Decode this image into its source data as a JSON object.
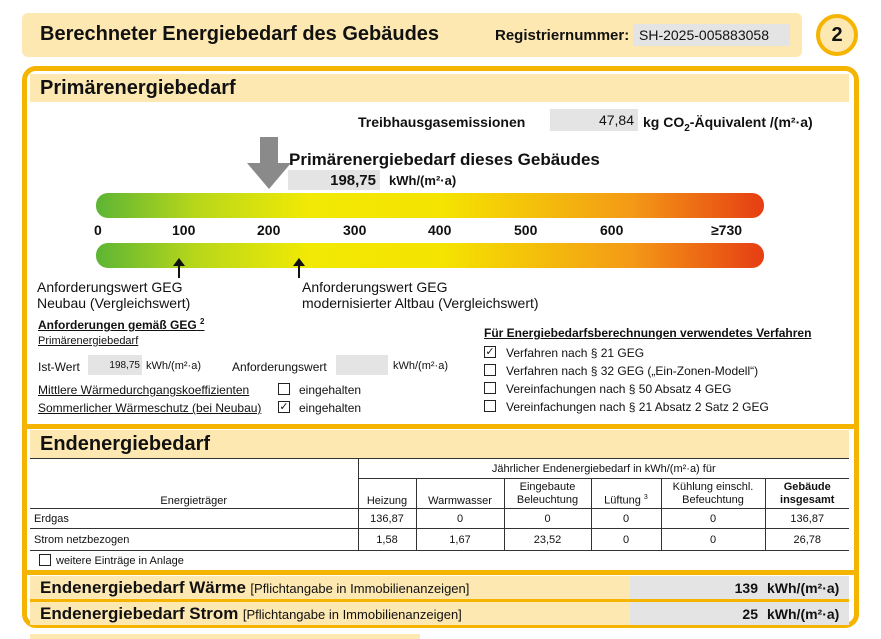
{
  "header": {
    "title": "Berechneter Energiebedarf des Gebäudes",
    "reg_label": "Registriernummer:",
    "reg_value": "SH-2025-005883058",
    "page_number": "2"
  },
  "primary": {
    "section_title": "Primärenergiebedarf",
    "ghg_label": "Treibhausgasemissionen",
    "ghg_value": "47,84",
    "ghg_unit_pre": "kg CO",
    "ghg_unit_sub": "2",
    "ghg_unit_post": "-Äquivalent /(m²·a)",
    "building_label": "Primärenergiebedarf dieses Gebäudes",
    "building_value": "198,75",
    "building_unit": "kWh/(m²·a)",
    "scale_ticks": [
      "0",
      "100",
      "200",
      "300",
      "400",
      "500",
      "600",
      "≥730"
    ],
    "scale_max": 730,
    "indicator_value": 198.75,
    "neubau_line1": "Anforderungswert GEG",
    "neubau_line2": "Neubau (Vergleichswert)",
    "altbau_line1": "Anforderungswert GEG",
    "altbau_line2": "modernisierter Altbau (Vergleichswert)",
    "req_title": "Anforderungen gemäß GEG",
    "req_sup": "2",
    "req_sub": "Primärenergiebedarf",
    "ist_label": "Ist-Wert",
    "ist_value": "198,75",
    "ist_unit": "kWh/(m²·a)",
    "anf_label": "Anforderungswert",
    "anf_value": "",
    "anf_unit": "kWh/(m²·a)",
    "mittlere_label": "Mittlere Wärmedurchgangskoeffizienten",
    "mittlere_check": "",
    "mittlere_text": "eingehalten",
    "sommer_label": "Sommerlicher Wärmeschutz (bei Neubau)",
    "sommer_check": "✓",
    "sommer_text": "eingehalten",
    "verfahren_title": "Für Energiebedarfsberechnungen verwendetes Verfahren",
    "verfahren": [
      {
        "check": "✓",
        "label": "Verfahren nach § 21 GEG"
      },
      {
        "check": "",
        "label": "Verfahren nach § 32 GEG („Ein-Zonen-Modell“)"
      },
      {
        "check": "",
        "label": "Vereinfachungen nach § 50 Absatz 4 GEG"
      },
      {
        "check": "",
        "label": "Vereinfachungen nach § 21 Absatz 2 Satz 2 GEG"
      }
    ]
  },
  "end": {
    "section_title": "Endenergiebedarf",
    "energietraeger_header": "Energieträger",
    "group_header": "Jährlicher Endenergiebedarf in kWh/(m²·a) für",
    "col_heizung": "Heizung",
    "col_warmwasser": "Warmwasser",
    "col_beleuchtung_1": "Eingebaute",
    "col_beleuchtung_2": "Beleuchtung",
    "col_lueftung": "Lüftung",
    "col_lueftung_sup": "3",
    "col_kuehlung_1": "Kühlung einschl.",
    "col_kuehlung_2": "Befeuchtung",
    "col_gesamt_1": "Gebäude",
    "col_gesamt_2": "insgesamt",
    "rows": [
      {
        "carrier": "Erdgas",
        "heizung": "136,87",
        "warmwasser": "0",
        "beleuchtung": "0",
        "lueftung": "0",
        "kuehlung": "0",
        "gesamt": "136,87"
      },
      {
        "carrier": "Strom netzbezogen",
        "heizung": "1,58",
        "warmwasser": "1,67",
        "beleuchtung": "23,52",
        "lueftung": "0",
        "kuehlung": "0",
        "gesamt": "26,78"
      }
    ],
    "more_check": "",
    "more_label": "weitere Einträge in Anlage",
    "waerme_title": "Endenergiebedarf Wärme",
    "waerme_note": "[Pflichtangabe in Immobilienanzeigen]",
    "waerme_value": "139",
    "waerme_unit": "kWh/(m²·a)",
    "strom_title": "Endenergiebedarf Strom",
    "strom_note": "[Pflichtangabe in Immobilienanzeigen]",
    "strom_value": "25",
    "strom_unit": "kWh/(m²·a)"
  }
}
